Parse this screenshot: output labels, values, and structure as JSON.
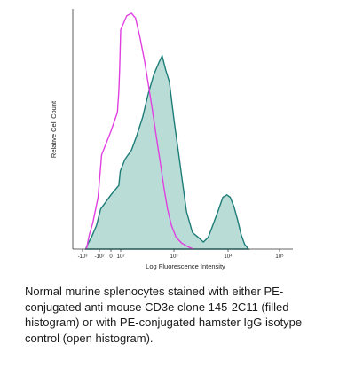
{
  "chart_data": {
    "type": "area",
    "xlabel": "Log Fluorescence Intensity",
    "ylabel": "Relative Cell Count",
    "x_scale": "log",
    "xlim": [
      -1000,
      100000
    ],
    "x_tick_labels": [
      "-10³",
      "-10²",
      "0",
      "10²",
      "10³",
      "10⁴",
      "10⁵"
    ],
    "grid": false,
    "series": [
      {
        "style": "filled",
        "fill_color": "#b9dcd6",
        "line_color": "#1d7c78",
        "points": [
          [
            -650,
            0.0
          ],
          [
            -500,
            0.02
          ],
          [
            -300,
            0.05
          ],
          [
            -150,
            0.1
          ],
          [
            -60,
            0.17
          ],
          [
            0,
            0.23
          ],
          [
            40,
            0.27
          ],
          [
            80,
            0.33
          ],
          [
            120,
            0.38
          ],
          [
            160,
            0.42
          ],
          [
            200,
            0.48
          ],
          [
            260,
            0.56
          ],
          [
            330,
            0.66
          ],
          [
            420,
            0.74
          ],
          [
            520,
            0.79
          ],
          [
            600,
            0.82
          ],
          [
            700,
            0.76
          ],
          [
            820,
            0.71
          ],
          [
            1000,
            0.55
          ],
          [
            1300,
            0.36
          ],
          [
            1700,
            0.16
          ],
          [
            2200,
            0.07
          ],
          [
            2800,
            0.05
          ],
          [
            3500,
            0.03
          ],
          [
            4300,
            0.05
          ],
          [
            5200,
            0.1
          ],
          [
            6500,
            0.16
          ],
          [
            8000,
            0.22
          ],
          [
            9500,
            0.23
          ],
          [
            11000,
            0.22
          ],
          [
            13000,
            0.18
          ],
          [
            15500,
            0.12
          ],
          [
            18000,
            0.06
          ],
          [
            21000,
            0.02
          ],
          [
            25000,
            0.0
          ]
        ]
      },
      {
        "style": "open",
        "line_color": "#e040e0",
        "points": [
          [
            -600,
            0.0
          ],
          [
            -550,
            0.01
          ],
          [
            -400,
            0.06
          ],
          [
            -250,
            0.11
          ],
          [
            -120,
            0.22
          ],
          [
            -40,
            0.4
          ],
          [
            0,
            0.5
          ],
          [
            20,
            0.58
          ],
          [
            40,
            0.67
          ],
          [
            60,
            0.76
          ],
          [
            80,
            0.86
          ],
          [
            100,
            0.93
          ],
          [
            130,
            0.99
          ],
          [
            160,
            1.0
          ],
          [
            190,
            0.98
          ],
          [
            230,
            0.9
          ],
          [
            280,
            0.8
          ],
          [
            330,
            0.7
          ],
          [
            400,
            0.58
          ],
          [
            480,
            0.46
          ],
          [
            560,
            0.36
          ],
          [
            650,
            0.26
          ],
          [
            760,
            0.17
          ],
          [
            900,
            0.1
          ],
          [
            1100,
            0.05
          ],
          [
            1400,
            0.025
          ],
          [
            1800,
            0.01
          ],
          [
            2300,
            0.0
          ]
        ]
      }
    ]
  },
  "caption": {
    "text": "Normal murine splenocytes stained with either PE-conjugated anti-mouse CD3e clone 145-2C11 (filled histogram) or with PE-conjugated hamster IgG isotype control (open histogram)."
  }
}
